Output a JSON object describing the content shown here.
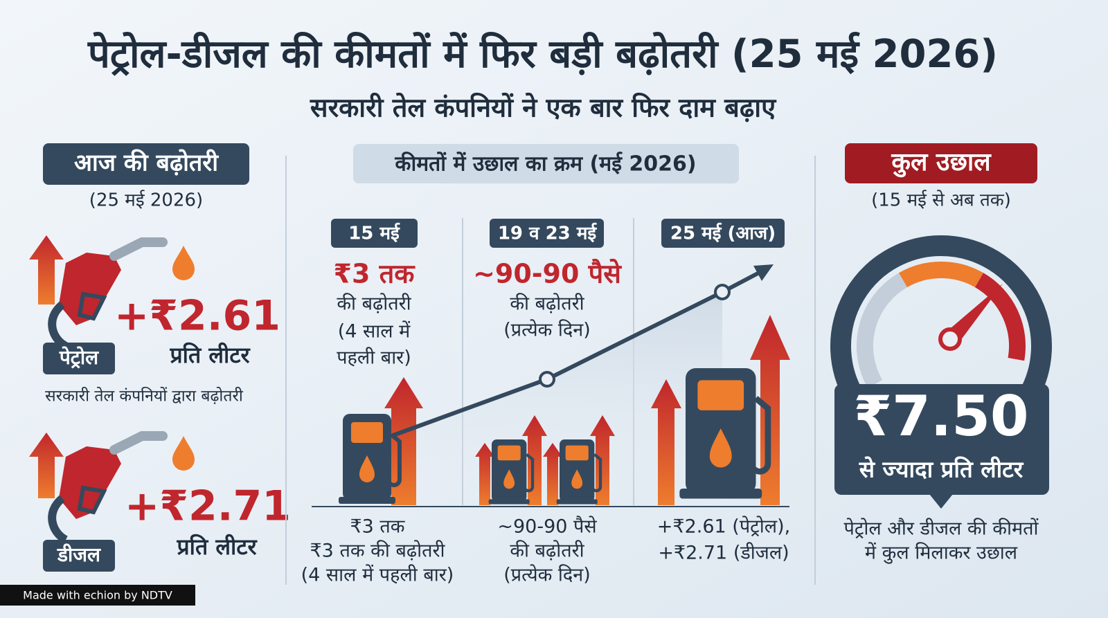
{
  "header": {
    "title": "पेट्रोल-डीजल की कीमतों में फिर बड़ी बढ़ोतरी (25 मई 2026)",
    "subtitle": "सरकारी तेल कंपनियों ने एक बार फिर दाम बढ़ाए"
  },
  "left": {
    "heading": "आज की बढ़ोतरी",
    "date": "(25 मई 2026)",
    "petrol": {
      "label": "पेट्रोल",
      "amount": "+₹2.61",
      "unit": "प्रति लीटर"
    },
    "note": "सरकारी तेल कंपनियों द्वारा बढ़ोतरी",
    "diesel": {
      "label": "डीजल",
      "amount": "+₹2.71",
      "unit": "प्रति लीटर"
    }
  },
  "middle": {
    "heading": "कीमतों में उछाल का क्रम (मई 2026)",
    "stages": [
      {
        "date": "15 मई",
        "headline": "₹3 तक",
        "lines": [
          "की बढ़ोतरी",
          "(4 साल में",
          "पहली बार)"
        ],
        "footer": [
          "₹3 तक",
          "₹3 तक की बढ़ोतरी",
          "(4 साल में पहली बार)"
        ]
      },
      {
        "date": "19 व 23 मई",
        "headline": "~90-90 पैसे",
        "lines": [
          "की बढ़ोतरी",
          "(प्रत्येक दिन)"
        ],
        "footer": [
          "~90-90 पैसे",
          "की बढ़ोतरी",
          "(प्रत्येक दिन)"
        ]
      },
      {
        "date": "25 मई (आज)",
        "footer": [
          "+₹2.61 (पेट्रोल),",
          "+₹2.71 (डीजल)"
        ]
      }
    ]
  },
  "right": {
    "heading": "कुल उछाल",
    "date": "(15 मई से अब तक)",
    "amount": "₹7.50",
    "unit": "से ज्यादा प्रति लीटर",
    "note": [
      "पेट्रोल और डीजल की कीमतों",
      "में कुल मिलाकर उछाल"
    ]
  },
  "footer": {
    "credit": "Made with echion by NDTV"
  }
}
